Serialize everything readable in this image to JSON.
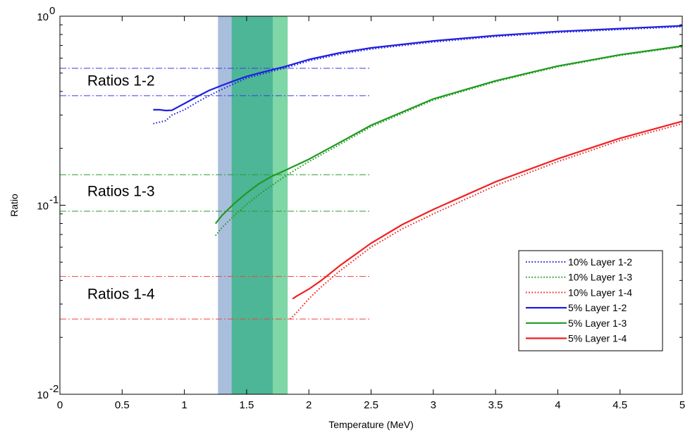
{
  "chart_data": {
    "type": "line",
    "title": "",
    "xlabel": "Temperature (MeV)",
    "ylabel": "Ratio",
    "xlim": [
      0,
      5
    ],
    "ylim": [
      0.01,
      1
    ],
    "yscale": "log",
    "grid": false,
    "legend_position": "bottom-right",
    "x_ticks": [
      "0",
      "0.5",
      "1",
      "1.5",
      "2",
      "2.5",
      "3",
      "3.5",
      "4",
      "4.5",
      "5"
    ],
    "y_ticks": [
      {
        "base": "10",
        "exp": "-2"
      },
      {
        "base": "10",
        "exp": "-1"
      },
      {
        "base": "10",
        "exp": "0"
      }
    ],
    "bands": [
      {
        "x": [
          1.27,
          1.71
        ],
        "color": "#a9bedd"
      },
      {
        "x": [
          1.38,
          1.83
        ],
        "color": "#7fd6a6"
      },
      {
        "x": [
          1.38,
          1.71
        ],
        "color": "#4db696"
      }
    ],
    "annotations": [
      {
        "text": "Ratios 1-2",
        "x": 0.22,
        "y": 0.43
      },
      {
        "text": "Ratios 1-3",
        "x": 0.22,
        "y": 0.112
      },
      {
        "text": "Ratios 1-4",
        "x": 0.22,
        "y": 0.032
      }
    ],
    "ref_lines": [
      {
        "y": 0.53,
        "x": [
          0,
          2.5
        ],
        "color": "#3a3ae6"
      },
      {
        "y": 0.38,
        "x": [
          0,
          2.5
        ],
        "color": "#3a3ae6"
      },
      {
        "y": 0.145,
        "x": [
          0,
          2.5
        ],
        "color": "#2a9a2a"
      },
      {
        "y": 0.093,
        "x": [
          0,
          2.5
        ],
        "color": "#2a9a2a"
      },
      {
        "y": 0.042,
        "x": [
          0,
          2.5
        ],
        "color": "#ee4444"
      },
      {
        "y": 0.025,
        "x": [
          0,
          2.5
        ],
        "color": "#ee4444"
      }
    ],
    "series": [
      {
        "name": "10% Layer 1-2",
        "color": "#1f1fe0",
        "style": "dotted",
        "x": [
          0.75,
          0.85,
          0.9,
          1.0,
          1.1,
          1.2,
          1.3,
          1.4,
          1.5,
          1.6,
          1.7,
          1.8,
          2.0,
          2.25,
          2.5,
          3.0,
          3.5,
          4.0,
          4.5,
          5.0
        ],
        "y": [
          0.27,
          0.28,
          0.3,
          0.32,
          0.35,
          0.38,
          0.41,
          0.44,
          0.47,
          0.49,
          0.51,
          0.53,
          0.58,
          0.63,
          0.67,
          0.73,
          0.78,
          0.82,
          0.85,
          0.88
        ]
      },
      {
        "name": "10% Layer 1-3",
        "color": "#1e9a1e",
        "style": "dotted",
        "x": [
          1.25,
          1.3,
          1.4,
          1.5,
          1.6,
          1.7,
          1.8,
          1.9,
          2.0,
          2.25,
          2.5,
          3.0,
          3.5,
          4.0,
          4.5,
          5.0
        ],
        "y": [
          0.069,
          0.076,
          0.088,
          0.101,
          0.114,
          0.127,
          0.141,
          0.155,
          0.17,
          0.21,
          0.26,
          0.36,
          0.45,
          0.54,
          0.62,
          0.69
        ]
      },
      {
        "name": "10% Layer 1-4",
        "color": "#f02020",
        "style": "dotted",
        "x": [
          1.85,
          1.9,
          2.0,
          2.1,
          2.25,
          2.5,
          2.75,
          3.0,
          3.5,
          4.0,
          4.5,
          5.0
        ],
        "y": [
          0.025,
          0.027,
          0.032,
          0.037,
          0.045,
          0.06,
          0.075,
          0.09,
          0.127,
          0.17,
          0.22,
          0.27
        ]
      },
      {
        "name": "5% Layer 1-2",
        "color": "#1f1fe0",
        "style": "solid",
        "x": [
          0.75,
          0.8,
          0.85,
          0.9,
          1.0,
          1.1,
          1.2,
          1.3,
          1.4,
          1.5,
          1.6,
          1.7,
          1.8,
          2.0,
          2.25,
          2.5,
          3.0,
          3.5,
          4.0,
          4.5,
          5.0
        ],
        "y": [
          0.32,
          0.32,
          0.317,
          0.318,
          0.345,
          0.375,
          0.405,
          0.43,
          0.455,
          0.48,
          0.5,
          0.52,
          0.54,
          0.59,
          0.64,
          0.68,
          0.74,
          0.79,
          0.83,
          0.86,
          0.89
        ]
      },
      {
        "name": "5% Layer 1-3",
        "color": "#1e9a1e",
        "style": "solid",
        "x": [
          1.25,
          1.3,
          1.4,
          1.5,
          1.6,
          1.7,
          1.8,
          1.9,
          2.0,
          2.25,
          2.5,
          3.0,
          3.5,
          4.0,
          4.5,
          5.0
        ],
        "y": [
          0.08,
          0.088,
          0.102,
          0.116,
          0.13,
          0.142,
          0.152,
          0.163,
          0.175,
          0.215,
          0.265,
          0.365,
          0.455,
          0.545,
          0.625,
          0.695
        ]
      },
      {
        "name": "5% Layer 1-4",
        "color": "#f02020",
        "style": "solid",
        "x": [
          1.87,
          1.9,
          2.0,
          2.1,
          2.25,
          2.5,
          2.75,
          3.0,
          3.5,
          4.0,
          4.5,
          5.0
        ],
        "y": [
          0.032,
          0.033,
          0.036,
          0.04,
          0.048,
          0.063,
          0.079,
          0.095,
          0.133,
          0.176,
          0.226,
          0.278
        ]
      }
    ]
  }
}
